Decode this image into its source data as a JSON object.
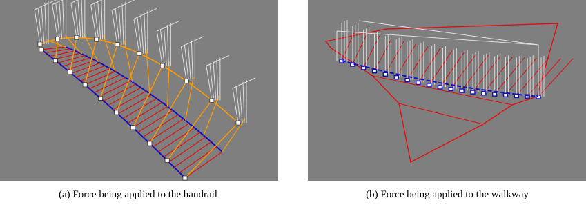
{
  "figures": [
    {
      "caption": "(a) Force being applied to the handrail"
    },
    {
      "caption": "(b) Force being applied to the walkway"
    }
  ]
}
